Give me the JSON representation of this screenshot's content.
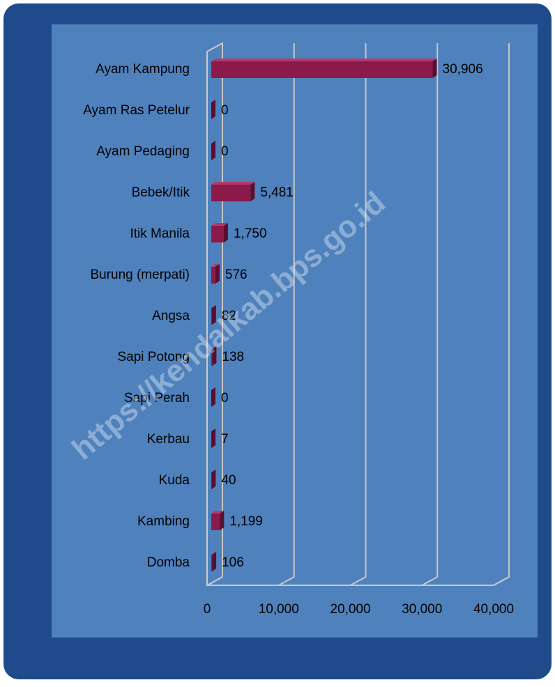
{
  "chart_data": {
    "type": "bar3d_horizontal",
    "categories": [
      "Ayam Kampung",
      "Ayam Ras Petelur",
      "Ayam Pedaging",
      "Bebek/Itik",
      "Itik Manila",
      "Burung (merpati)",
      "Angsa",
      "Sapi Potong",
      "Sapi Perah",
      "Kerbau",
      "Kuda",
      "Kambing",
      "Domba"
    ],
    "values": [
      30906,
      0,
      0,
      5481,
      1750,
      576,
      82,
      138,
      0,
      7,
      40,
      1199,
      106
    ],
    "value_labels": [
      "30,906",
      "0",
      "0",
      "5,481",
      "1,750",
      "576",
      "82",
      "138",
      "0",
      "7",
      "40",
      "1,199",
      "106"
    ],
    "color": "#8b1a4a",
    "xlim": [
      0,
      40000
    ],
    "xticks": [
      0,
      {
        "value": 10000,
        "label": "10,000"
      },
      {
        "value": 20000,
        "label": "20,000"
      },
      {
        "value": 30000,
        "label": "30,000"
      },
      {
        "value": 40000,
        "label": "40,000"
      }
    ],
    "grid": true,
    "watermark": "https://kendalkab.bps.go.id"
  }
}
